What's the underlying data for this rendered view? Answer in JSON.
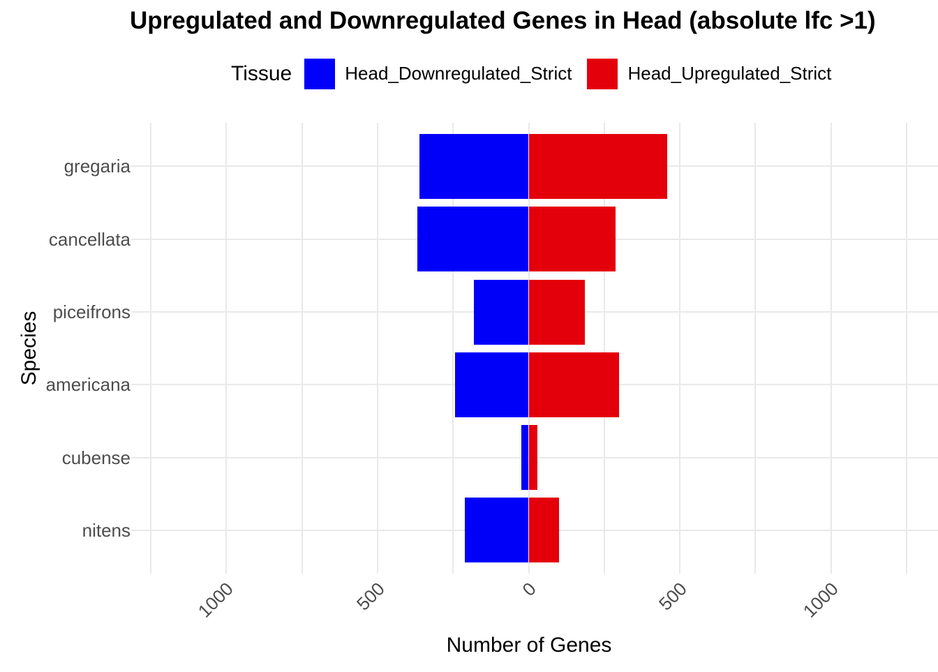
{
  "title": "Upregulated and Downregulated Genes in Head (absolute lfc >1)",
  "legend": {
    "title": "Tissue",
    "items": [
      {
        "label": "Head_Downregulated_Strict",
        "color": "#0000FA"
      },
      {
        "label": "Head_Upregulated_Strict",
        "color": "#E4000B"
      }
    ]
  },
  "axes": {
    "y_title": "Species",
    "x_title": "Number of Genes"
  },
  "colors": {
    "grid": "#E9E9E9",
    "axis_text": "#4D4D4D",
    "title_text": "#000000",
    "background": "#FFFFFF",
    "downregulated": "#0000FA",
    "upregulated": "#E4000B"
  },
  "chart_data": {
    "type": "bar",
    "subtype": "horizontal-diverging",
    "title": "Upregulated and Downregulated Genes in Head (absolute lfc >1)",
    "xlabel": "Number of Genes",
    "ylabel": "Species",
    "categories": [
      "gregaria",
      "cancellata",
      "piceifrons",
      "americana",
      "cubense",
      "nitens"
    ],
    "series": [
      {
        "name": "Head_Downregulated_Strict",
        "color": "#0000FA",
        "direction": "negative",
        "values": [
          362,
          368,
          182,
          243,
          24,
          211
        ]
      },
      {
        "name": "Head_Upregulated_Strict",
        "color": "#E4000B",
        "direction": "positive",
        "values": [
          459,
          288,
          186,
          298,
          28,
          100
        ]
      }
    ],
    "x_ticks": {
      "values": [
        -1000,
        -500,
        0,
        500,
        1000
      ],
      "labels": [
        "1000",
        "500",
        "0",
        "500",
        "1000"
      ]
    },
    "x_minor_step": 250,
    "xlim": [
      -1275,
      1355
    ],
    "grid": true,
    "legend_title": "Tissue",
    "legend_position": "top",
    "x_tick_rotation_deg": 45
  }
}
